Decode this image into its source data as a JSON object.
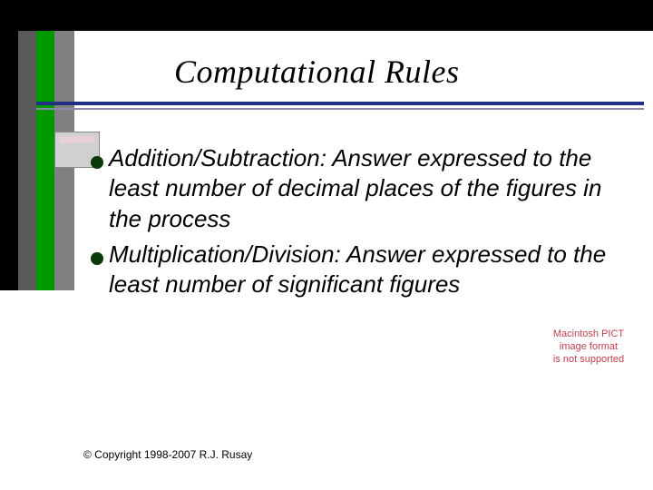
{
  "title": "Computational Rules",
  "bullets": [
    {
      "lead": "Addition/Subtraction:",
      "rest": " Answer expressed to the least number of decimal places of the figures in the process"
    },
    {
      "lead": "Multiplication/Division:",
      "rest": " Answer expressed to the least number of significant figures"
    }
  ],
  "placeholder": {
    "line1": "Macintosh PICT",
    "line2": "image format",
    "line3": "is not supported"
  },
  "copyright": "© Copyright 1998-2007 R.J. Rusay",
  "colors": {
    "sidebar_green": "#009900",
    "rule_blue": "#203080",
    "bullet_color": "#0a3a0a",
    "placeholder_text": "#c04050"
  }
}
